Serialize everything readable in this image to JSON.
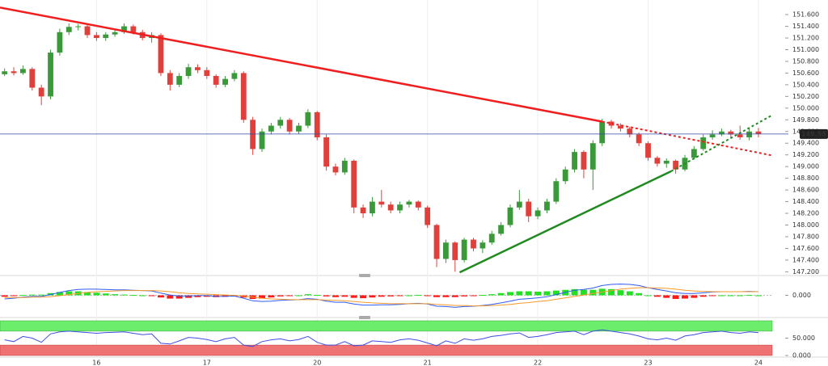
{
  "chart_data": [
    {
      "type": "candlestick",
      "xlim": [
        -0.5,
        83.5
      ],
      "xticks": [
        {
          "value": 10,
          "label": "16"
        },
        {
          "value": 22,
          "label": "17"
        },
        {
          "value": 34,
          "label": "20"
        },
        {
          "value": 46,
          "label": "21"
        },
        {
          "value": 58,
          "label": "22"
        },
        {
          "value": 70,
          "label": "23"
        },
        {
          "value": 82,
          "label": "24"
        }
      ],
      "ylim": [
        147.15,
        151.85
      ],
      "yticks": [
        {
          "value": 147.2,
          "label": "147.200"
        },
        {
          "value": 147.4,
          "label": "147.400"
        },
        {
          "value": 147.6,
          "label": "147.600"
        },
        {
          "value": 147.8,
          "label": "147.800"
        },
        {
          "value": 148.0,
          "label": "148.000"
        },
        {
          "value": 148.2,
          "label": "148.200"
        },
        {
          "value": 148.4,
          "label": "148.400"
        },
        {
          "value": 148.6,
          "label": "148.600"
        },
        {
          "value": 148.8,
          "label": "148.800"
        },
        {
          "value": 149.0,
          "label": "149.000"
        },
        {
          "value": 149.2,
          "label": "149.200"
        },
        {
          "value": 149.4,
          "label": "149.400"
        },
        {
          "value": 149.6,
          "label": "149.600"
        },
        {
          "value": 149.8,
          "label": "149.800"
        },
        {
          "value": 150.0,
          "label": "150.000"
        },
        {
          "value": 150.2,
          "label": "150.200"
        },
        {
          "value": 150.4,
          "label": "150.400"
        },
        {
          "value": 150.6,
          "label": "150.600"
        },
        {
          "value": 150.8,
          "label": "150.800"
        },
        {
          "value": 151.0,
          "label": "151.000"
        },
        {
          "value": 151.2,
          "label": "151.200"
        },
        {
          "value": 151.4,
          "label": "151.400"
        },
        {
          "value": 151.6,
          "label": "151.600"
        }
      ],
      "grid": true,
      "up_color": "#3a9a3a",
      "down_color": "#e0403b",
      "open": [
        150.58,
        150.63,
        150.6,
        150.67,
        150.35,
        150.2,
        150.95,
        151.3,
        151.39,
        151.4,
        151.25,
        151.2,
        151.26,
        151.3,
        151.4,
        151.3,
        151.2,
        151.25,
        150.6,
        150.4,
        150.55,
        150.7,
        150.65,
        150.55,
        150.4,
        150.5,
        150.6,
        149.8,
        149.3,
        149.6,
        149.7,
        149.8,
        149.6,
        149.7,
        149.93,
        149.5,
        149.0,
        148.9,
        149.1,
        148.3,
        148.2,
        148.4,
        148.35,
        148.25,
        148.35,
        148.4,
        148.3,
        148.0,
        147.42,
        147.7,
        147.4,
        147.75,
        147.6,
        147.7,
        147.85,
        148.0,
        148.3,
        148.4,
        148.15,
        148.25,
        148.4,
        148.75,
        148.95,
        149.25,
        148.95,
        149.4,
        149.77,
        149.7,
        149.65,
        149.55,
        149.4,
        149.15,
        149.05,
        149.1,
        148.95,
        149.15,
        149.3,
        149.5,
        149.55,
        149.6,
        149.55,
        149.5,
        149.6
      ],
      "high": [
        150.68,
        150.7,
        150.73,
        150.7,
        150.4,
        151.0,
        151.36,
        151.45,
        151.44,
        151.42,
        151.3,
        151.3,
        151.34,
        151.45,
        151.43,
        151.34,
        151.3,
        151.28,
        150.65,
        150.6,
        150.76,
        150.75,
        150.7,
        150.58,
        150.55,
        150.65,
        150.63,
        149.85,
        149.65,
        149.75,
        149.85,
        149.83,
        149.75,
        149.98,
        149.95,
        149.55,
        149.05,
        149.15,
        149.12,
        148.35,
        148.48,
        148.6,
        148.4,
        148.4,
        148.43,
        148.42,
        148.33,
        148.02,
        147.75,
        147.72,
        147.78,
        147.78,
        147.74,
        147.9,
        148.05,
        148.35,
        148.6,
        148.45,
        148.3,
        148.45,
        148.8,
        149.0,
        149.3,
        149.28,
        149.45,
        149.82,
        149.8,
        149.74,
        149.68,
        149.58,
        149.43,
        149.18,
        149.14,
        149.12,
        149.2,
        149.35,
        149.55,
        149.62,
        149.65,
        149.63,
        149.7,
        149.65,
        149.66
      ],
      "low": [
        150.55,
        150.56,
        150.57,
        150.3,
        150.05,
        150.15,
        150.9,
        151.25,
        151.33,
        151.2,
        151.15,
        151.15,
        151.22,
        151.27,
        151.26,
        151.16,
        151.12,
        150.55,
        150.3,
        150.36,
        150.5,
        150.6,
        150.5,
        150.35,
        150.36,
        150.46,
        149.75,
        149.2,
        149.25,
        149.55,
        149.65,
        149.55,
        149.56,
        149.66,
        149.45,
        148.93,
        148.85,
        148.86,
        148.2,
        148.12,
        148.15,
        148.3,
        148.2,
        148.2,
        148.3,
        148.25,
        147.95,
        147.28,
        147.35,
        147.2,
        147.36,
        147.55,
        147.52,
        147.66,
        147.82,
        147.96,
        148.26,
        148.05,
        148.1,
        148.2,
        148.36,
        148.7,
        148.9,
        148.8,
        148.6,
        149.35,
        149.65,
        149.6,
        149.5,
        149.35,
        149.1,
        149.0,
        148.98,
        148.88,
        148.92,
        149.12,
        149.27,
        149.46,
        149.52,
        149.5,
        149.46,
        149.45,
        149.5
      ],
      "close": [
        150.63,
        150.6,
        150.67,
        150.35,
        150.2,
        150.95,
        151.3,
        151.39,
        151.4,
        151.25,
        151.2,
        151.26,
        151.3,
        151.4,
        151.3,
        151.2,
        151.25,
        150.6,
        150.4,
        150.55,
        150.7,
        150.65,
        150.55,
        150.4,
        150.5,
        150.6,
        149.8,
        149.3,
        149.6,
        149.7,
        149.8,
        149.6,
        149.7,
        149.93,
        149.5,
        149.0,
        148.9,
        149.1,
        148.3,
        148.2,
        148.4,
        148.35,
        148.25,
        148.35,
        148.4,
        148.3,
        148.0,
        147.42,
        147.7,
        147.4,
        147.75,
        147.6,
        147.7,
        147.85,
        148.0,
        148.3,
        148.4,
        148.15,
        148.25,
        148.4,
        148.75,
        148.95,
        149.25,
        148.95,
        149.4,
        149.77,
        149.7,
        149.65,
        149.55,
        149.4,
        149.15,
        149.05,
        149.1,
        148.95,
        149.15,
        149.3,
        149.5,
        149.55,
        149.6,
        149.55,
        149.5,
        149.6,
        149.557
      ],
      "trend_lines": [
        {
          "color": "#f01e1e",
          "x": [
            -0.5,
            65,
            83.5
          ],
          "y": [
            151.72,
            149.77,
            149.19
          ]
        },
        {
          "color": "#1f8a1f",
          "x": [
            49.5,
            72.5,
            83.5
          ],
          "y": [
            147.19,
            148.92,
            149.88
          ]
        }
      ],
      "last_price": 149.557,
      "last_price_color": "#3048a8"
    },
    {
      "type": "macd",
      "ylim": [
        -0.5,
        0.5
      ],
      "yticks": [
        {
          "value": 0,
          "label": "0.000"
        }
      ],
      "histogram": {
        "up_color": "#22e022",
        "down_color": "#ff1a1a",
        "values": [
          -0.04,
          -0.02,
          0.01,
          0.02,
          0.02,
          0.06,
          0.09,
          0.11,
          0.11,
          0.09,
          0.07,
          0.05,
          0.03,
          0.02,
          0.01,
          0.0,
          -0.01,
          -0.06,
          -0.09,
          -0.09,
          -0.07,
          -0.05,
          -0.04,
          -0.05,
          -0.04,
          -0.02,
          -0.06,
          -0.1,
          -0.09,
          -0.06,
          -0.03,
          -0.01,
          0.0,
          0.03,
          0.01,
          -0.03,
          -0.05,
          -0.04,
          -0.07,
          -0.08,
          -0.06,
          -0.04,
          -0.03,
          -0.02,
          0.0,
          0.01,
          -0.01,
          -0.05,
          -0.05,
          -0.05,
          -0.03,
          -0.01,
          0.01,
          0.03,
          0.06,
          0.09,
          0.11,
          0.11,
          0.1,
          0.11,
          0.13,
          0.15,
          0.17,
          0.15,
          0.15,
          0.18,
          0.17,
          0.14,
          0.11,
          0.06,
          0.0,
          -0.04,
          -0.07,
          -0.1,
          -0.09,
          -0.07,
          -0.04,
          -0.01,
          0.0,
          0.0,
          0.0,
          0.01,
          0.0
        ]
      },
      "series": [
        {
          "color": "#2f5cf0",
          "values": [
            -0.1,
            -0.08,
            -0.05,
            -0.03,
            -0.03,
            0.02,
            0.08,
            0.13,
            0.16,
            0.17,
            0.17,
            0.16,
            0.15,
            0.15,
            0.14,
            0.13,
            0.12,
            0.06,
            0.01,
            -0.02,
            -0.02,
            -0.01,
            -0.01,
            -0.03,
            -0.03,
            -0.02,
            -0.08,
            -0.15,
            -0.17,
            -0.16,
            -0.14,
            -0.13,
            -0.12,
            -0.09,
            -0.11,
            -0.16,
            -0.19,
            -0.19,
            -0.24,
            -0.27,
            -0.27,
            -0.26,
            -0.26,
            -0.25,
            -0.23,
            -0.22,
            -0.24,
            -0.3,
            -0.31,
            -0.33,
            -0.31,
            -0.3,
            -0.28,
            -0.25,
            -0.21,
            -0.16,
            -0.11,
            -0.09,
            -0.07,
            -0.04,
            0.02,
            0.08,
            0.14,
            0.16,
            0.2,
            0.27,
            0.3,
            0.31,
            0.3,
            0.27,
            0.21,
            0.16,
            0.12,
            0.07,
            0.05,
            0.05,
            0.07,
            0.09,
            0.1,
            0.1,
            0.1,
            0.11,
            0.1
          ]
        },
        {
          "color": "#f59a2a",
          "values": [
            -0.06,
            -0.06,
            -0.06,
            -0.05,
            -0.05,
            -0.04,
            -0.01,
            0.02,
            0.05,
            0.08,
            0.1,
            0.11,
            0.12,
            0.13,
            0.13,
            0.13,
            0.13,
            0.12,
            0.1,
            0.07,
            0.05,
            0.04,
            0.03,
            0.02,
            0.01,
            0.0,
            -0.02,
            -0.05,
            -0.08,
            -0.1,
            -0.11,
            -0.12,
            -0.12,
            -0.12,
            -0.12,
            -0.13,
            -0.14,
            -0.15,
            -0.17,
            -0.19,
            -0.21,
            -0.22,
            -0.23,
            -0.23,
            -0.23,
            -0.23,
            -0.23,
            -0.25,
            -0.26,
            -0.28,
            -0.28,
            -0.29,
            -0.29,
            -0.28,
            -0.27,
            -0.25,
            -0.22,
            -0.2,
            -0.17,
            -0.15,
            -0.11,
            -0.07,
            -0.03,
            0.01,
            0.05,
            0.09,
            0.13,
            0.17,
            0.19,
            0.21,
            0.21,
            0.2,
            0.19,
            0.17,
            0.14,
            0.12,
            0.11,
            0.1,
            0.1,
            0.1,
            0.1,
            0.1,
            0.1
          ]
        }
      ]
    },
    {
      "type": "rsi",
      "ylim": [
        0,
        100
      ],
      "yticks": [
        {
          "value": 50,
          "label": "50.000"
        },
        {
          "value": 0,
          "label": "0.000"
        }
      ],
      "upper_band": [
        70,
        100
      ],
      "upper_color": "#6ced6c",
      "lower_band": [
        0,
        30
      ],
      "lower_color": "#f07373",
      "color": "#3d4fe0",
      "values": [
        45,
        40,
        55,
        50,
        38,
        62,
        68,
        70,
        68,
        66,
        64,
        66,
        67,
        68,
        64,
        60,
        62,
        35,
        33,
        42,
        52,
        50,
        46,
        40,
        48,
        52,
        30,
        26,
        40,
        45,
        48,
        42,
        46,
        55,
        38,
        30,
        30,
        40,
        28,
        30,
        42,
        40,
        38,
        45,
        48,
        44,
        36,
        28,
        42,
        35,
        48,
        44,
        48,
        55,
        58,
        62,
        65,
        52,
        55,
        60,
        66,
        68,
        70,
        60,
        70,
        74,
        70,
        66,
        62,
        56,
        48,
        45,
        50,
        44,
        56,
        60,
        66,
        68,
        70,
        66,
        64,
        68,
        66
      ]
    }
  ]
}
